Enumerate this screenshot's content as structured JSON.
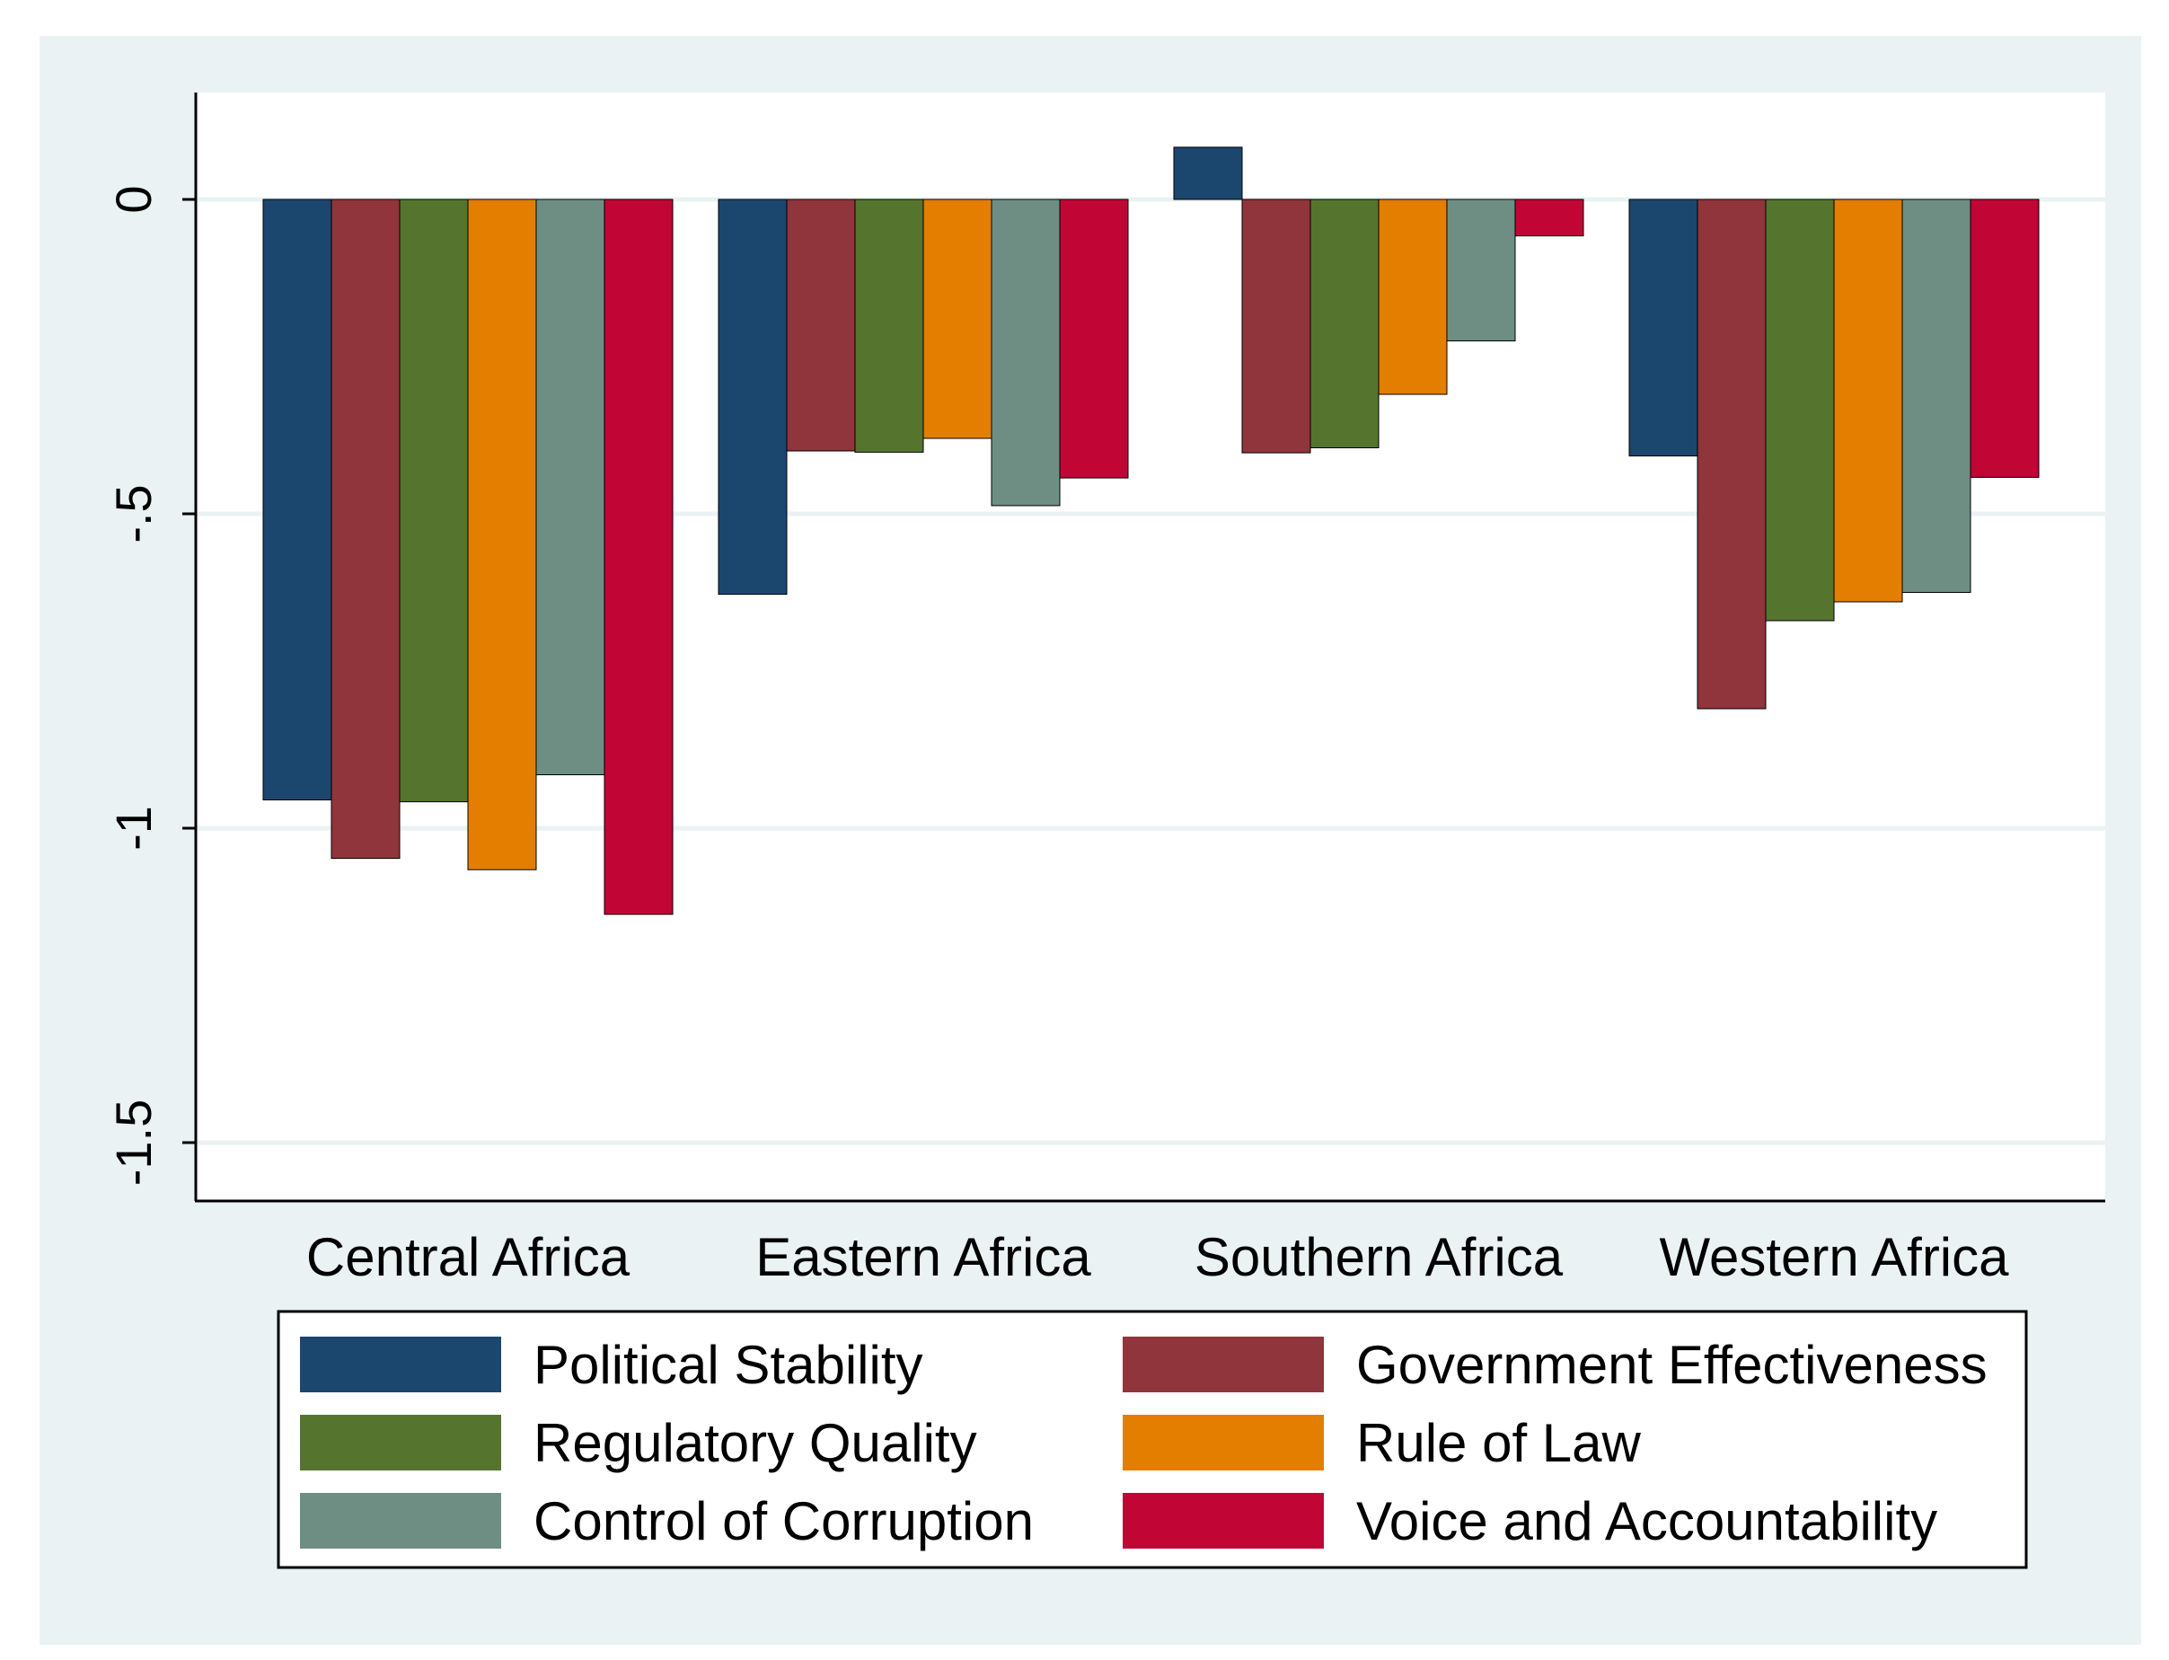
{
  "chart_data": {
    "type": "bar",
    "title": "",
    "xlabel": "",
    "ylabel": "",
    "ylim": [
      -1.58,
      0.17
    ],
    "yticks": [
      {
        "value": 0,
        "label": "0"
      },
      {
        "value": -0.5,
        "label": "-.5"
      },
      {
        "value": -1,
        "label": "-1"
      },
      {
        "value": -1.5,
        "label": "-1.5"
      }
    ],
    "grid": true,
    "legend_position": "bottom",
    "categories": [
      "Central Africa",
      "Eastern Africa",
      "Southern Africa",
      "Western Africa"
    ],
    "series": [
      {
        "name": "Political Stability",
        "color": "#1b466e",
        "values": [
          -0.955,
          -0.628,
          0.083,
          -0.408
        ]
      },
      {
        "name": "Government Effectiveness",
        "color": "#90353b",
        "values": [
          -1.048,
          -0.4,
          -0.403,
          -0.81
        ]
      },
      {
        "name": "Regulatory Quality",
        "color": "#55752f",
        "values": [
          -0.958,
          -0.402,
          -0.395,
          -0.67
        ]
      },
      {
        "name": "Rule of Law",
        "color": "#e37e00",
        "values": [
          -1.066,
          -0.38,
          -0.31,
          -0.64
        ]
      },
      {
        "name": "Control of Corruption",
        "color": "#6e8e84",
        "values": [
          -0.915,
          -0.487,
          -0.225,
          -0.625
        ]
      },
      {
        "name": "Voice and Accountability",
        "color": "#c10534",
        "values": [
          -1.137,
          -0.443,
          -0.058,
          -0.442
        ]
      }
    ]
  }
}
